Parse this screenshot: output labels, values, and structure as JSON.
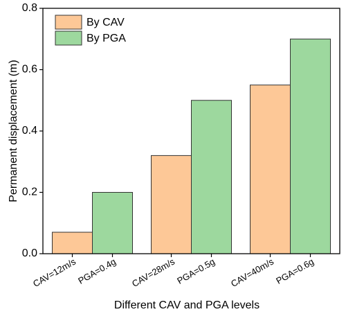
{
  "chart_data": {
    "type": "bar",
    "xlabel": "Different CAV and PGA levels",
    "ylabel": "Permanent displacement (m)",
    "series": [
      {
        "name": "By CAV",
        "color": "#fdc897",
        "values": [
          0.07,
          0.32,
          0.55
        ],
        "labels": [
          "CAV=12m/s",
          "CAV=28m/s",
          "CAV=40m/s"
        ]
      },
      {
        "name": "By PGA",
        "color": "#9dd89e",
        "values": [
          0.2,
          0.5,
          0.7
        ],
        "labels": [
          "PGA=0.4g",
          "PGA=0.5g",
          "PGA=0.6g"
        ]
      }
    ],
    "ylim": [
      0,
      0.8
    ],
    "yticks": [
      {
        "value": 0,
        "label": "0.0"
      },
      0.2,
      0.4,
      0.6,
      0.8
    ],
    "legend": "upper left"
  }
}
